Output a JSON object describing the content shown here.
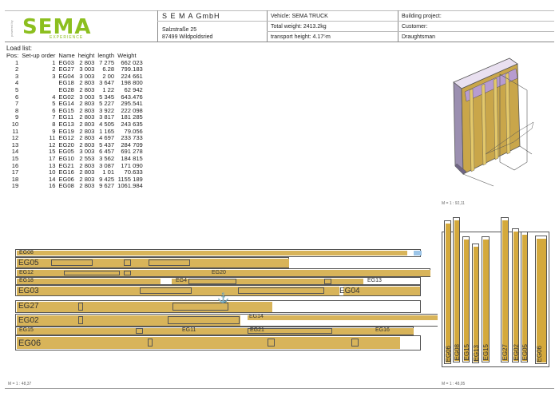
{
  "header": {
    "company": "S E M A GmbH",
    "street": "Salzstraße 25",
    "city": "87499 Wildpoldsried",
    "vehicle": "Vehicle: SEMA TRUCK",
    "total_weight": "Total weight: 2413.2kg",
    "transport_height": "transport height: 4.17⁵m",
    "building_project": "Building project:",
    "customer": "Customer:",
    "draughtsman": "Draughtsman",
    "logo_text": "SEMA",
    "logo_sub": "EXPERIENCE",
    "logo_side": "powered by"
  },
  "load_list": {
    "title": "Load list:",
    "columns": [
      "Pos:",
      "Set-up order",
      "Name",
      "height",
      "length",
      "Weight"
    ],
    "rows": [
      [
        "1",
        "1",
        "EG03",
        "2 803",
        "7 275",
        "662 023"
      ],
      [
        "2",
        "2",
        "EG27",
        "3 003",
        "6.28",
        "799.183"
      ],
      [
        "3",
        "3",
        "EG04",
        "3 003",
        "2 00",
        "224 661"
      ],
      [
        "4",
        "",
        "EG18",
        "2 803",
        "3 647",
        "198 800"
      ],
      [
        "5",
        "",
        "EG28",
        "2 803",
        "1 22",
        "62 942"
      ],
      [
        "6",
        "4",
        "EG02",
        "3 003",
        "5 345",
        "643.476"
      ],
      [
        "7",
        "5",
        "EG14",
        "2 803",
        "5 227",
        "295.541"
      ],
      [
        "8",
        "6",
        "EG15",
        "2 803",
        "3 922",
        "222 098"
      ],
      [
        "9",
        "7",
        "EG11",
        "2 803",
        "3 817",
        "181 285"
      ],
      [
        "10",
        "8",
        "EG13",
        "2 803",
        "4 505",
        "243 635"
      ],
      [
        "11",
        "9",
        "EG19",
        "2 803",
        "1 165",
        "79.056"
      ],
      [
        "12",
        "11",
        "EG12",
        "2 803",
        "4 697",
        "233 733"
      ],
      [
        "13",
        "12",
        "EG20",
        "2 803",
        "5 437",
        "284 709"
      ],
      [
        "14",
        "15",
        "EG05",
        "3 003",
        "6 457",
        "691 278"
      ],
      [
        "15",
        "17",
        "EG10",
        "2 553",
        "3 562",
        "184 815"
      ],
      [
        "16",
        "13",
        "EG21",
        "2 803",
        "3 087",
        "171 090"
      ],
      [
        "17",
        "10",
        "EG16",
        "2 803",
        "1 01",
        "70.633"
      ],
      [
        "18",
        "14",
        "EG06",
        "2 803",
        "9 425",
        "1155 189"
      ],
      [
        "19",
        "16",
        "EG08",
        "2 803",
        "9 627",
        "1061.984"
      ]
    ]
  },
  "scales": {
    "iso": "M = 1 : 92,11",
    "top": "M = 1 : 48,37",
    "side": "M = 1 : 48,05"
  },
  "plan_labels": {
    "eg08": "EG08",
    "eg05": "EG05",
    "eg12": "EG12",
    "eg20": "EG20",
    "eg18": "EG18",
    "eg4": "EG4",
    "eg13": "EG13",
    "eg03": "EG03",
    "eg04": "EG04",
    "eg27": "EG27",
    "eg02": "EG02",
    "eg14": "EG14",
    "eg15": "EG15",
    "eg11": "EG11",
    "eg21": "EG21",
    "eg16": "EG16",
    "eg06": "EG06",
    "eg10": "EG10"
  },
  "side_labels": [
    "EG06",
    "EG08",
    "EG15",
    "EG13",
    "EG15",
    "EG27",
    "EG02",
    "EG05",
    "EG06"
  ],
  "colors": {
    "wood": "#d8b45a",
    "brand": "#8cbf1f",
    "outline": "#555555"
  }
}
